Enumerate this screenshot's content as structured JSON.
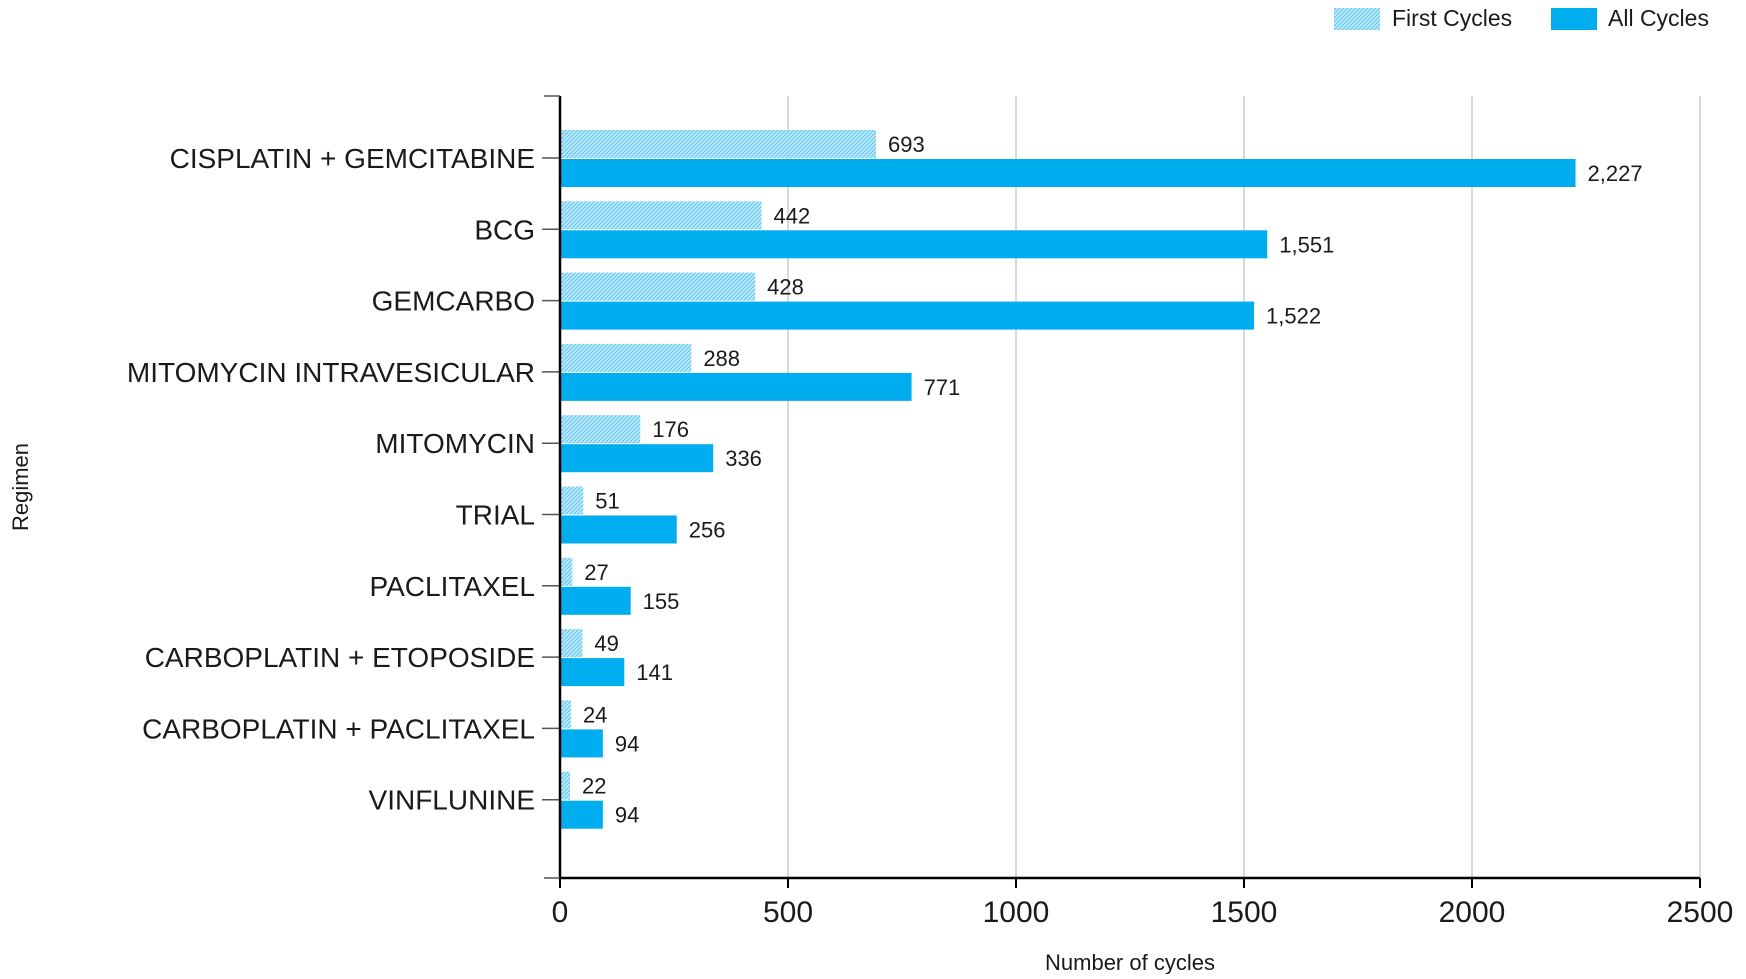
{
  "chart_data": {
    "type": "bar",
    "orientation": "horizontal",
    "title": "",
    "xlabel": "Number of cycles",
    "ylabel": "Regimen",
    "xlim": [
      0,
      2500
    ],
    "xticks": [
      0,
      500,
      1000,
      1500,
      2000,
      2500
    ],
    "grid": "vertical",
    "legend_position": "top-right",
    "categories": [
      "CISPLATIN + GEMCITABINE",
      "BCG",
      "GEMCARBO",
      "MITOMYCIN INTRAVESICULAR",
      "MITOMYCIN",
      "TRIAL",
      "PACLITAXEL",
      "CARBOPLATIN + ETOPOSIDE",
      "CARBOPLATIN + PACLITAXEL",
      "VINFLUNINE"
    ],
    "series": [
      {
        "name": "First Cycles",
        "color": "#9fdaf3",
        "pattern": "hatched",
        "values": [
          693,
          442,
          428,
          288,
          176,
          51,
          27,
          49,
          24,
          22
        ],
        "labels": [
          "693",
          "442",
          "428",
          "288",
          "176",
          "51",
          "27",
          "49",
          "24",
          "22"
        ]
      },
      {
        "name": "All Cycles",
        "color": "#00aeef",
        "pattern": "solid",
        "values": [
          2227,
          1551,
          1522,
          771,
          336,
          256,
          155,
          141,
          94,
          94
        ],
        "labels": [
          "2,227",
          "1,551",
          "1,522",
          "771",
          "336",
          "256",
          "155",
          "141",
          "94",
          "94"
        ]
      }
    ]
  }
}
